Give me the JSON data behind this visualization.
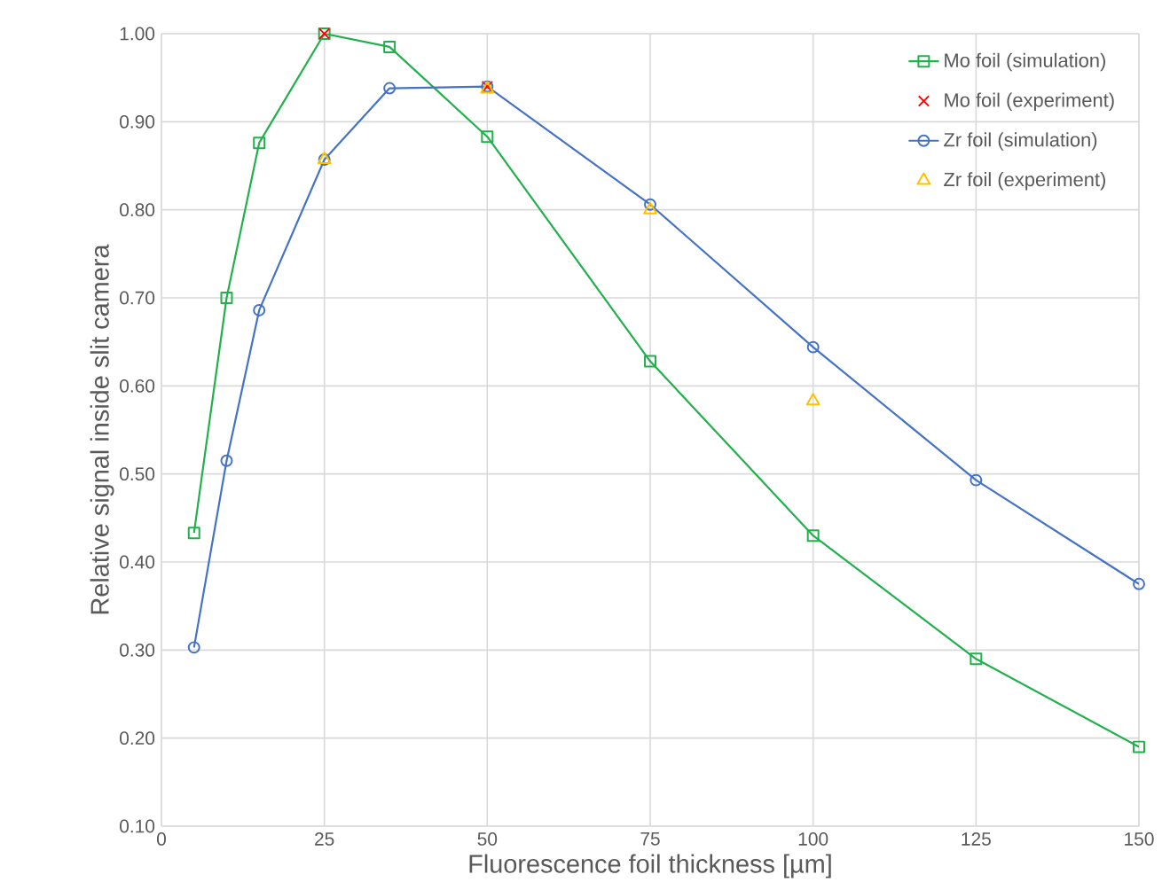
{
  "chart_data": {
    "type": "line",
    "xlabel": "Fluorescence foil thickness  [µm]",
    "ylabel": "Relative signal inside slit camera",
    "xlim": [
      0,
      150
    ],
    "ylim": [
      0.1,
      1.0
    ],
    "xticks": [
      0,
      25,
      50,
      75,
      100,
      125,
      150
    ],
    "yticks": [
      {
        "value": 0.1,
        "label": "0.10"
      },
      {
        "value": 0.2,
        "label": "0.20"
      },
      {
        "value": 0.3,
        "label": "0.30"
      },
      {
        "value": 0.4,
        "label": "0.40"
      },
      {
        "value": 0.5,
        "label": "0.50"
      },
      {
        "value": 0.6,
        "label": "0.60"
      },
      {
        "value": 0.7,
        "label": "0.70"
      },
      {
        "value": 0.8,
        "label": "0.80"
      },
      {
        "value": 0.9,
        "label": "0.90"
      },
      {
        "value": 1.0,
        "label": "1.00"
      }
    ],
    "grid": true,
    "legend": "top right",
    "series": [
      {
        "name": "Mo foil (simulation)",
        "marker": "square",
        "color": "#22b04c",
        "x": [
          5,
          10,
          15,
          25,
          35,
          50,
          75,
          100,
          125,
          150
        ],
        "values": [
          0.433,
          0.7,
          0.876,
          1.0,
          0.985,
          0.883,
          0.628,
          0.43,
          0.29,
          0.19
        ]
      },
      {
        "name": "Mo foil (experiment)",
        "type": "scatter",
        "marker": "cross",
        "color": "#ff0000",
        "x": [
          25,
          50
        ],
        "values": [
          1.0,
          0.94
        ]
      },
      {
        "name": "Zr foil (simulation)",
        "marker": "circle",
        "color": "#4472c4",
        "x": [
          5,
          10,
          15,
          25,
          35,
          50,
          75,
          100,
          125,
          150
        ],
        "values": [
          0.303,
          0.515,
          0.686,
          0.857,
          0.938,
          0.94,
          0.806,
          0.644,
          0.493,
          0.375
        ]
      },
      {
        "name": "Zr foil (experiment)",
        "type": "scatter",
        "marker": "triangle",
        "color": "#ffc000",
        "x": [
          25,
          50,
          75,
          100
        ],
        "values": [
          0.857,
          0.937,
          0.8,
          0.583
        ]
      }
    ]
  }
}
